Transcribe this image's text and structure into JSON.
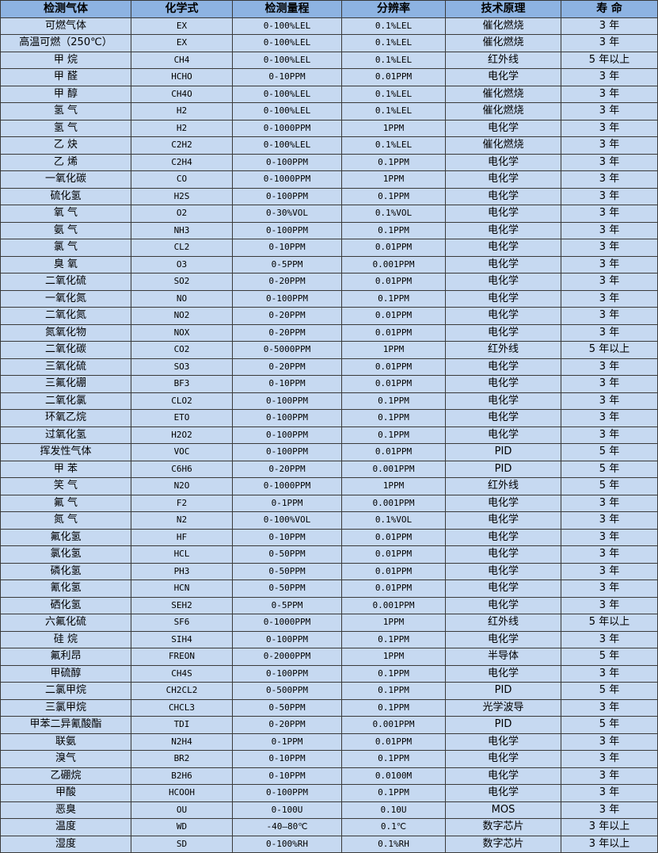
{
  "colors": {
    "header_bg": "#8db3e2",
    "row_bg": "#c6d9f1",
    "border": "#3a3a3a"
  },
  "table": {
    "headers": [
      "检测气体",
      "化学式",
      "检测量程",
      "分辨率",
      "技术原理",
      "寿 命"
    ],
    "rows": [
      [
        "可燃气体",
        "EX",
        "0-100%LEL",
        "0.1%LEL",
        "催化燃烧",
        "3 年"
      ],
      [
        "高温可燃（250℃）",
        "EX",
        "0-100%LEL",
        "0.1%LEL",
        "催化燃烧",
        "3 年"
      ],
      [
        "甲 烷",
        "CH4",
        "0-100%LEL",
        "0.1%LEL",
        "红外线",
        "5 年以上"
      ],
      [
        "甲 醛",
        "HCHO",
        "0-10PPM",
        "0.01PPM",
        "电化学",
        "3 年"
      ],
      [
        "甲 醇",
        "CH4O",
        "0-100%LEL",
        "0.1%LEL",
        "催化燃烧",
        "3 年"
      ],
      [
        "氢 气",
        "H2",
        "0-100%LEL",
        "0.1%LEL",
        "催化燃烧",
        "3 年"
      ],
      [
        "氢 气",
        "H2",
        "0-1000PPM",
        "1PPM",
        "电化学",
        "3 年"
      ],
      [
        "乙 炔",
        "C2H2",
        "0-100%LEL",
        "0.1%LEL",
        "催化燃烧",
        "3 年"
      ],
      [
        "乙 烯",
        "C2H4",
        "0-100PPM",
        "0.1PPM",
        "电化学",
        "3 年"
      ],
      [
        "一氧化碳",
        "CO",
        "0-1000PPM",
        "1PPM",
        "电化学",
        "3 年"
      ],
      [
        "硫化氢",
        "H2S",
        "0-100PPM",
        "0.1PPM",
        "电化学",
        "3 年"
      ],
      [
        "氧 气",
        "O2",
        "0-30%VOL",
        "0.1%VOL",
        "电化学",
        "3 年"
      ],
      [
        "氨 气",
        "NH3",
        "0-100PPM",
        "0.1PPM",
        "电化学",
        "3 年"
      ],
      [
        "氯 气",
        "CL2",
        "0-10PPM",
        "0.01PPM",
        "电化学",
        "3 年"
      ],
      [
        "臭 氧",
        "O3",
        "0-5PPM",
        "0.001PPM",
        "电化学",
        "3 年"
      ],
      [
        "二氧化硫",
        "SO2",
        "0-20PPM",
        "0.01PPM",
        "电化学",
        "3 年"
      ],
      [
        "一氧化氮",
        "NO",
        "0-100PPM",
        "0.1PPM",
        "电化学",
        "3 年"
      ],
      [
        "二氧化氮",
        "NO2",
        "0-20PPM",
        "0.01PPM",
        "电化学",
        "3 年"
      ],
      [
        "氮氧化物",
        "NOX",
        "0-20PPM",
        "0.01PPM",
        "电化学",
        "3 年"
      ],
      [
        "二氧化碳",
        "CO2",
        "0-5000PPM",
        "1PPM",
        "红外线",
        "5 年以上"
      ],
      [
        "三氧化硫",
        "SO3",
        "0-20PPM",
        "0.01PPM",
        "电化学",
        "3 年"
      ],
      [
        "三氟化硼",
        "BF3",
        "0-10PPM",
        "0.01PPM",
        "电化学",
        "3 年"
      ],
      [
        "二氧化氯",
        "CLO2",
        "0-100PPM",
        "0.1PPM",
        "电化学",
        "3 年"
      ],
      [
        "环氧乙烷",
        "ETO",
        "0-100PPM",
        "0.1PPM",
        "电化学",
        "3 年"
      ],
      [
        "过氧化氢",
        "H2O2",
        "0-100PPM",
        "0.1PPM",
        "电化学",
        "3 年"
      ],
      [
        "挥发性气体",
        "VOC",
        "0-100PPM",
        "0.01PPM",
        "PID",
        "5 年"
      ],
      [
        "甲 苯",
        "C6H6",
        "0-20PPM",
        "0.001PPM",
        "PID",
        "5 年"
      ],
      [
        "笑 气",
        "N2O",
        "0-1000PPM",
        "1PPM",
        "红外线",
        "5 年"
      ],
      [
        "氟 气",
        "F2",
        "0-1PPM",
        "0.001PPM",
        "电化学",
        "3 年"
      ],
      [
        "氮 气",
        "N2",
        "0-100%VOL",
        "0.1%VOL",
        "电化学",
        "3 年"
      ],
      [
        "氟化氢",
        "HF",
        "0-10PPM",
        "0.01PPM",
        "电化学",
        "3 年"
      ],
      [
        "氯化氢",
        "HCL",
        "0-50PPM",
        "0.01PPM",
        "电化学",
        "3 年"
      ],
      [
        "磷化氢",
        "PH3",
        "0-50PPM",
        "0.01PPM",
        "电化学",
        "3 年"
      ],
      [
        "氰化氢",
        "HCN",
        "0-50PPM",
        "0.01PPM",
        "电化学",
        "3 年"
      ],
      [
        "硒化氢",
        "SEH2",
        "0-5PPM",
        "0.001PPM",
        "电化学",
        "3 年"
      ],
      [
        "六氟化硫",
        "SF6",
        "0-1000PPM",
        "1PPM",
        "红外线",
        "5 年以上"
      ],
      [
        "硅 烷",
        "SIH4",
        "0-100PPM",
        "0.1PPM",
        "电化学",
        "3 年"
      ],
      [
        "氟利昂",
        "FREON",
        "0-2000PPM",
        "1PPM",
        "半导体",
        "5 年"
      ],
      [
        "甲硫醇",
        "CH4S",
        "0-100PPM",
        "0.1PPM",
        "电化学",
        "3 年"
      ],
      [
        "二氯甲烷",
        "CH2CL2",
        "0-500PPM",
        "0.1PPM",
        "PID",
        "5 年"
      ],
      [
        "三氯甲烷",
        "CHCL3",
        "0-50PPM",
        "0.1PPM",
        "光学波导",
        "3 年"
      ],
      [
        "甲苯二异氰酸酯",
        "TDI",
        "0-20PPM",
        "0.001PPM",
        "PID",
        "5 年"
      ],
      [
        "联氨",
        "N2H4",
        "0-1PPM",
        "0.01PPM",
        "电化学",
        "3 年"
      ],
      [
        "溴气",
        "BR2",
        "0-10PPM",
        "0.1PPM",
        "电化学",
        "3 年"
      ],
      [
        "乙硼烷",
        "B2H6",
        "0-10PPM",
        "0.0100M",
        "电化学",
        "3 年"
      ],
      [
        "甲酸",
        "HCOOH",
        "0-100PPM",
        "0.1PPM",
        "电化学",
        "3 年"
      ],
      [
        "恶臭",
        "OU",
        "0-100U",
        "0.10U",
        "MOS",
        "3 年"
      ],
      [
        "温度",
        "WD",
        "-40—80℃",
        "0.1℃",
        "数字芯片",
        "3 年以上"
      ],
      [
        "湿度",
        "SD",
        "0-100%RH",
        "0.1%RH",
        "数字芯片",
        "3 年以上"
      ]
    ]
  }
}
